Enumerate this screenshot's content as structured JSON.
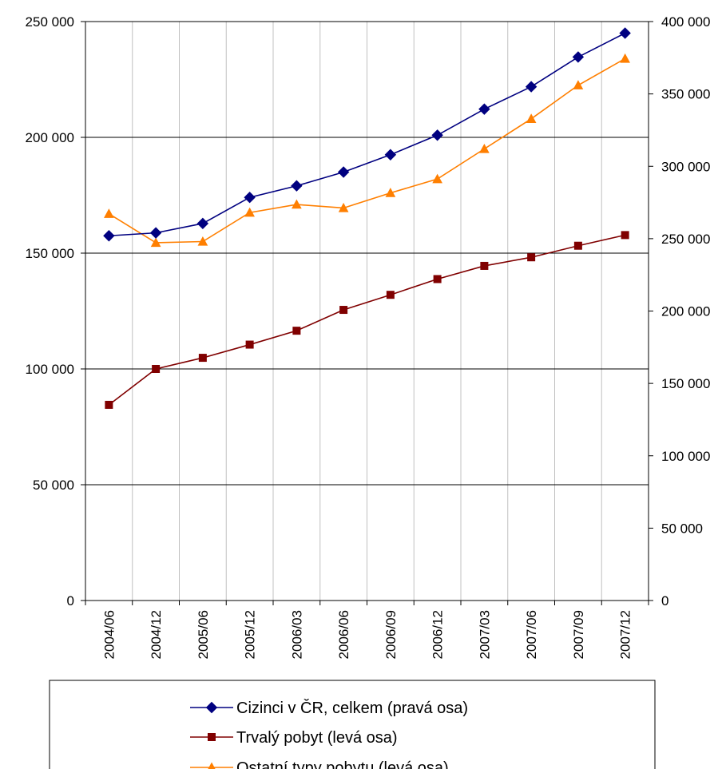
{
  "chart_data": {
    "type": "line",
    "categories": [
      "2004/06",
      "2004/12",
      "2005/06",
      "2005/12",
      "2006/03",
      "2006/06",
      "2006/09",
      "2006/12",
      "2007/03",
      "2007/06",
      "2007/09",
      "2007/12"
    ],
    "left_axis": {
      "ylim": [
        0,
        250000
      ],
      "ticks": [
        0,
        50000,
        100000,
        150000,
        200000,
        250000
      ],
      "tick_labels": [
        "0",
        "50 000",
        "100 000",
        "150 000",
        "200 000",
        "250 000"
      ]
    },
    "right_axis": {
      "ylim": [
        0,
        400000
      ],
      "ticks": [
        0,
        50000,
        100000,
        150000,
        200000,
        250000,
        300000,
        350000,
        400000
      ],
      "tick_labels": [
        "0",
        "50 000",
        "100 000",
        "150 000",
        "200 000",
        "250 000",
        "300 000",
        "350 000",
        "400 000"
      ]
    },
    "series": [
      {
        "name": "Cizinci v ČR, celkem (pravá osa)",
        "axis": "right",
        "color": "#000080",
        "marker": "diamond",
        "values": [
          252000,
          254000,
          260500,
          278500,
          286500,
          296000,
          308000,
          321500,
          339500,
          355000,
          375500,
          392000
        ]
      },
      {
        "name": "Trvalý pobyt (levá osa)",
        "axis": "left",
        "color": "#800000",
        "marker": "square",
        "values": [
          84500,
          100000,
          104800,
          110500,
          116500,
          125500,
          132000,
          138800,
          144500,
          148200,
          153200,
          157800
        ]
      },
      {
        "name": "Ostatní typy pobytu (levá osa)",
        "axis": "left",
        "color": "#FF7F00",
        "marker": "triangle",
        "values": [
          167000,
          154500,
          155000,
          167500,
          171000,
          169500,
          176000,
          182000,
          195000,
          208000,
          222500,
          234000
        ]
      }
    ],
    "grid": {
      "horizontal": true,
      "vertical": true
    },
    "legend_position": "bottom"
  }
}
